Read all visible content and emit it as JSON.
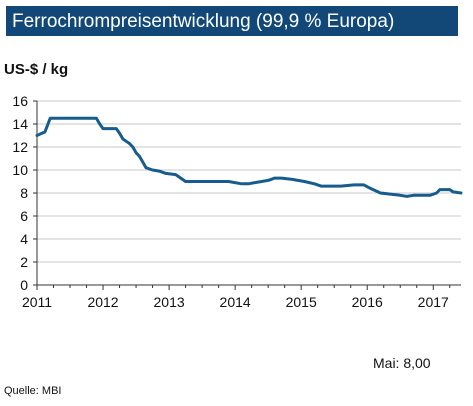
{
  "header": {
    "title": "Ferrochrompreisentwicklung (99,9 % Europa)"
  },
  "unit_label": "US-$ / kg",
  "note": "Mai:  8,00",
  "source": "Quelle:  MBI",
  "colors": {
    "title_bg": "#114878",
    "line": "#165C8E",
    "grid": "#C8C8C8"
  },
  "chart_data": {
    "type": "line",
    "title": "Ferrochrompreisentwicklung (99,9 % Europa)",
    "ylabel": "US-$ / kg",
    "xlabel": "",
    "ylim": [
      0,
      16
    ],
    "xlim": [
      2011.0,
      2017.42
    ],
    "y_ticks": [
      "0",
      "2",
      "4",
      "6",
      "8",
      "10",
      "12",
      "14",
      "16"
    ],
    "x_ticks": [
      "2011",
      "2012",
      "2013",
      "2014",
      "2015",
      "2016",
      "2017"
    ],
    "grid": true,
    "series": [
      {
        "name": "",
        "x": [
          2011.0,
          2011.04,
          2011.12,
          2011.2,
          2011.35,
          2011.5,
          2011.65,
          2011.78,
          2011.9,
          2011.95,
          2012.0,
          2012.12,
          2012.2,
          2012.25,
          2012.3,
          2012.35,
          2012.4,
          2012.45,
          2012.5,
          2012.55,
          2012.6,
          2012.65,
          2012.7,
          2012.75,
          2012.85,
          2012.95,
          2013.1,
          2013.25,
          2013.35,
          2013.5,
          2013.7,
          2013.9,
          2014.1,
          2014.2,
          2014.3,
          2014.5,
          2014.6,
          2014.7,
          2014.85,
          2014.95,
          2015.05,
          2015.2,
          2015.3,
          2015.5,
          2015.6,
          2015.8,
          2015.95,
          2016.05,
          2016.2,
          2016.35,
          2016.5,
          2016.6,
          2016.7,
          2016.8,
          2016.95,
          2017.05,
          2017.1,
          2017.25,
          2017.3,
          2017.42
        ],
        "values": [
          13.0,
          13.1,
          13.3,
          14.5,
          14.5,
          14.5,
          14.5,
          14.5,
          14.5,
          14.0,
          13.6,
          13.6,
          13.6,
          13.2,
          12.7,
          12.5,
          12.3,
          12.0,
          11.5,
          11.2,
          10.7,
          10.2,
          10.1,
          10.0,
          9.9,
          9.7,
          9.6,
          9.0,
          9.0,
          9.0,
          9.0,
          9.0,
          8.8,
          8.8,
          8.9,
          9.1,
          9.3,
          9.3,
          9.2,
          9.1,
          9.0,
          8.8,
          8.6,
          8.6,
          8.6,
          8.7,
          8.7,
          8.4,
          8.0,
          7.9,
          7.8,
          7.7,
          7.8,
          7.8,
          7.8,
          8.0,
          8.3,
          8.3,
          8.1,
          8.0
        ]
      }
    ]
  }
}
